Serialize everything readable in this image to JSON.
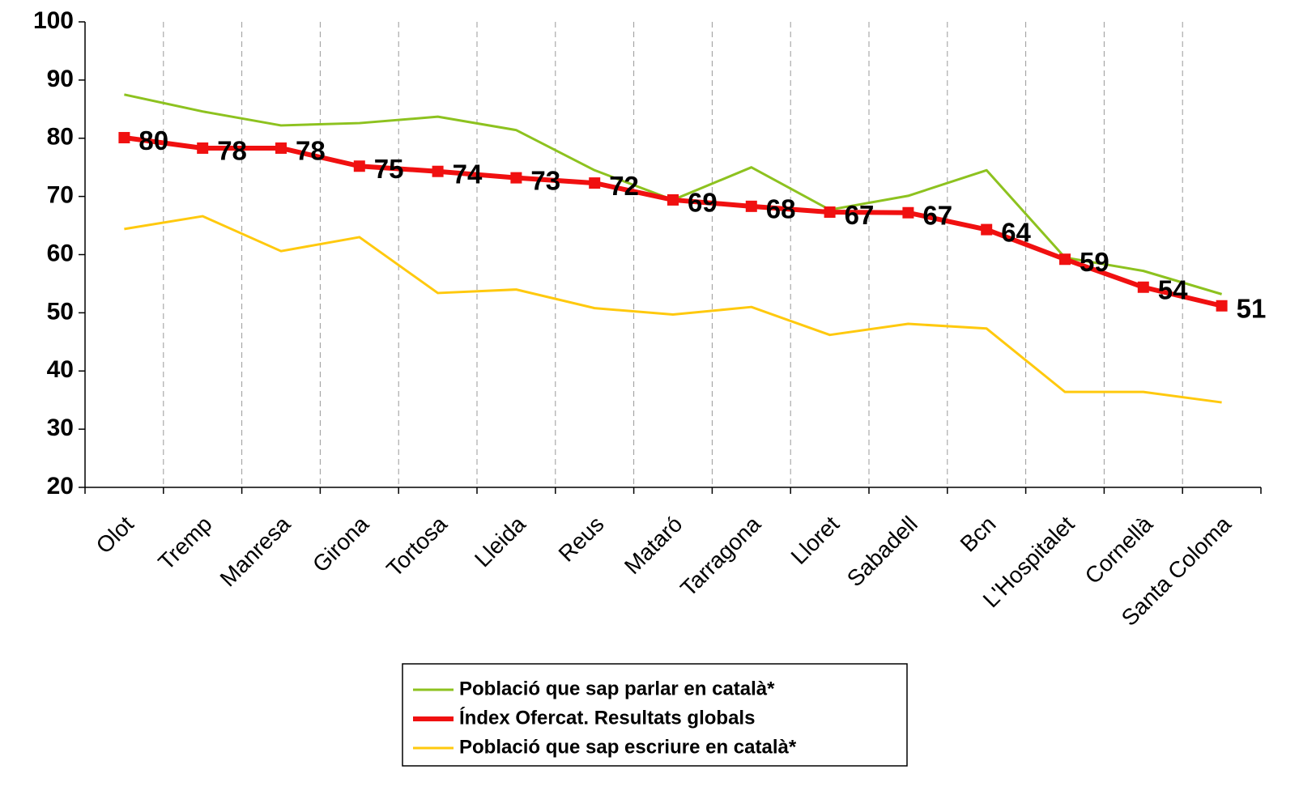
{
  "chart_data": {
    "type": "line",
    "categories": [
      "Olot",
      "Tremp",
      "Manresa",
      "Girona",
      "Tortosa",
      "Lleida",
      "Reus",
      "Mataró",
      "Tarragona",
      "Lloret",
      "Sabadell",
      "Bcn",
      "L'Hospitalet",
      "Cornellà",
      "Santa Coloma"
    ],
    "series": [
      {
        "name": "Població que sap parlar en català*",
        "color": "#8dc21f",
        "width": 3,
        "values": [
          87.5,
          84.6,
          82.2,
          82.6,
          83.7,
          81.4,
          74.5,
          69.4,
          75,
          67.7,
          70.1,
          74.5,
          59.5,
          57.2,
          53.2
        ]
      },
      {
        "name": "Índex Ofercat. Resultats globals",
        "color": "#f01010",
        "width": 6,
        "markers": true,
        "values": [
          80.1,
          78.3,
          78.3,
          75.2,
          74.3,
          73.2,
          72.3,
          69.4,
          68.3,
          67.3,
          67.2,
          64.3,
          59.2,
          54.4,
          51.2
        ],
        "value_labels": [
          "80",
          "78",
          "78",
          "75",
          "74",
          "73",
          "72",
          "69",
          "68",
          "67",
          "67",
          "64",
          "59",
          "54",
          "51"
        ]
      },
      {
        "name": "Població que sap escriure en català*",
        "color": "#ffc90e",
        "width": 3,
        "values": [
          64.4,
          66.6,
          60.6,
          63,
          53.4,
          54,
          50.8,
          49.7,
          51,
          46.2,
          48.1,
          47.3,
          36.4,
          36.4,
          34.6
        ]
      }
    ],
    "ylim": [
      20,
      100
    ],
    "yticks": [
      20,
      30,
      40,
      50,
      60,
      70,
      80,
      90,
      100
    ],
    "grid": "vertical-dashed"
  }
}
